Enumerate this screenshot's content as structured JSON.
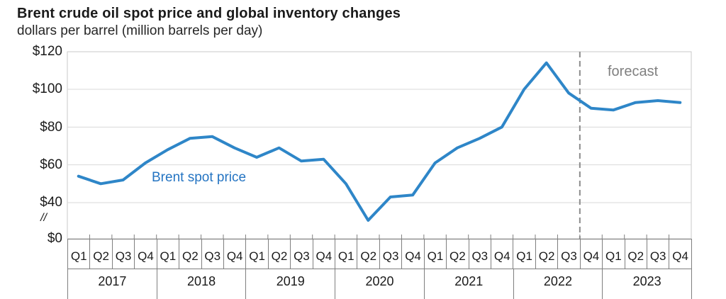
{
  "header": {
    "title": "Brent crude oil spot price and global inventory changes",
    "subtitle": "dollars per barrel (million barrels per day)"
  },
  "chart_data": {
    "type": "line",
    "title": "Brent crude oil spot price and global inventory changes",
    "ylabel": "dollars per barrel (million barrels per day)",
    "ylim": [
      0,
      120
    ],
    "y_axis_break": true,
    "axis_break_label": "//",
    "grid": true,
    "y_ticks": [
      {
        "label": "$120",
        "value": 120
      },
      {
        "label": "$100",
        "value": 100
      },
      {
        "label": "$80",
        "value": 80
      },
      {
        "label": "$60",
        "value": 60
      },
      {
        "label": "$40",
        "value": 40
      },
      {
        "label": "$0",
        "value": 0
      }
    ],
    "years": [
      "2017",
      "2018",
      "2019",
      "2020",
      "2021",
      "2022",
      "2023"
    ],
    "quarters": [
      "Q1",
      "Q2",
      "Q3",
      "Q4"
    ],
    "x_categories": [
      "2017-Q1",
      "2017-Q2",
      "2017-Q3",
      "2017-Q4",
      "2018-Q1",
      "2018-Q2",
      "2018-Q3",
      "2018-Q4",
      "2019-Q1",
      "2019-Q2",
      "2019-Q3",
      "2019-Q4",
      "2020-Q1",
      "2020-Q2",
      "2020-Q3",
      "2020-Q4",
      "2021-Q1",
      "2021-Q2",
      "2021-Q3",
      "2021-Q4",
      "2022-Q1",
      "2022-Q2",
      "2022-Q3",
      "2022-Q4",
      "2023-Q1",
      "2023-Q2",
      "2023-Q3",
      "2023-Q4"
    ],
    "series": [
      {
        "name": "Brent spot price",
        "values": [
          54,
          50,
          52,
          61,
          68,
          74,
          75,
          69,
          64,
          69,
          62,
          63,
          50,
          30,
          43,
          44,
          61,
          69,
          74,
          80,
          100,
          114,
          98,
          90,
          89,
          93,
          94,
          93
        ]
      }
    ],
    "forecast": {
      "label": "forecast",
      "boundary_after": "2022-Q3",
      "divider_quarter_index": 23
    },
    "annotations": {
      "series_label": "Brent spot price"
    },
    "colors": {
      "line": "#2e86c8",
      "series_label_text": "#2474c2",
      "forecast_text": "#808080",
      "forecast_divider": "#8c8c8c",
      "gridline": "#d9d9d9",
      "plot_border": "#c9c9c9",
      "axis_table_border": "#7f7f7f",
      "tick": "#7f7f7f"
    }
  }
}
